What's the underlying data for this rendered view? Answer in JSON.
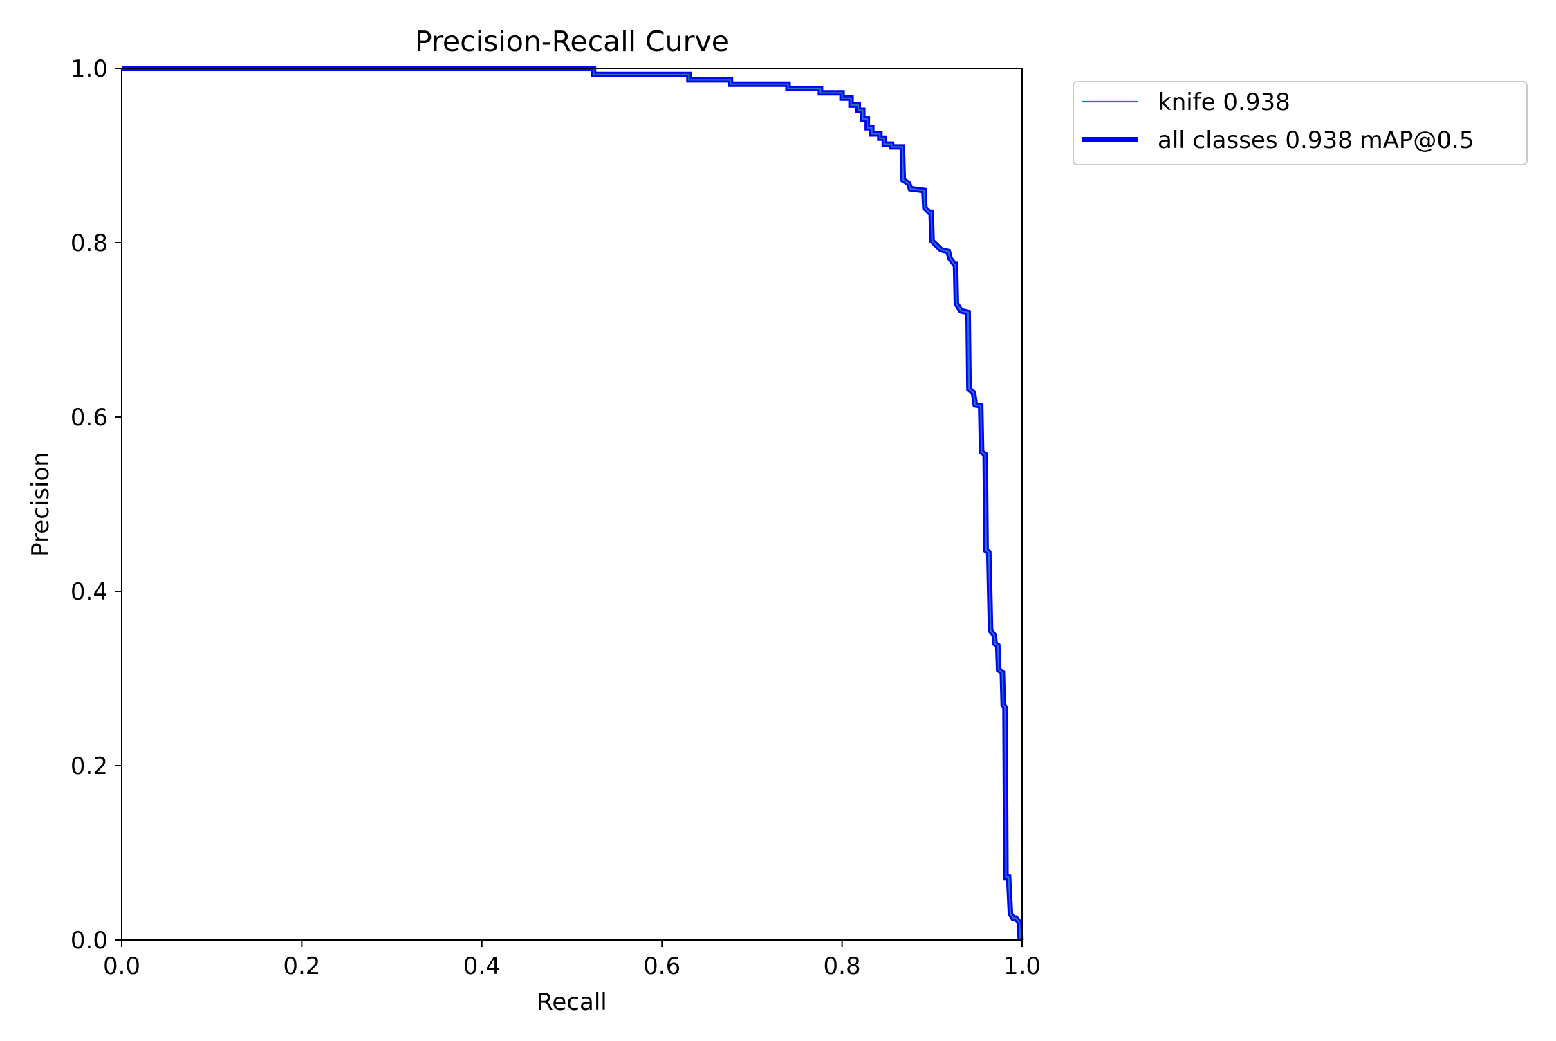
{
  "chart_data": {
    "type": "line",
    "title": "Precision-Recall Curve",
    "xlabel": "Recall",
    "ylabel": "Precision",
    "xlim": [
      0.0,
      1.0
    ],
    "ylim": [
      0.0,
      1.0
    ],
    "xticks": [
      "0.0",
      "0.2",
      "0.4",
      "0.6",
      "0.8",
      "1.0"
    ],
    "yticks": [
      "0.0",
      "0.2",
      "0.4",
      "0.6",
      "0.8",
      "1.0"
    ],
    "grid": false,
    "legend_position": "outside-top-right",
    "series": [
      {
        "name": "knife 0.938",
        "color": "#1f77b4",
        "style": "thin",
        "points": [
          [
            0.0,
            1.0
          ],
          [
            0.524,
            1.0
          ],
          [
            0.524,
            0.993
          ],
          [
            0.63,
            0.993
          ],
          [
            0.63,
            0.987
          ],
          [
            0.676,
            0.987
          ],
          [
            0.676,
            0.982
          ],
          [
            0.74,
            0.982
          ],
          [
            0.74,
            0.977
          ],
          [
            0.776,
            0.977
          ],
          [
            0.776,
            0.972
          ],
          [
            0.8,
            0.972
          ],
          [
            0.8,
            0.966
          ],
          [
            0.81,
            0.966
          ],
          [
            0.81,
            0.958
          ],
          [
            0.818,
            0.958
          ],
          [
            0.818,
            0.952
          ],
          [
            0.823,
            0.952
          ],
          [
            0.823,
            0.942
          ],
          [
            0.828,
            0.942
          ],
          [
            0.828,
            0.932
          ],
          [
            0.833,
            0.932
          ],
          [
            0.833,
            0.925
          ],
          [
            0.842,
            0.925
          ],
          [
            0.842,
            0.92
          ],
          [
            0.847,
            0.92
          ],
          [
            0.847,
            0.913
          ],
          [
            0.855,
            0.913
          ],
          [
            0.855,
            0.91
          ],
          [
            0.867,
            0.91
          ],
          [
            0.868,
            0.872
          ],
          [
            0.874,
            0.868
          ],
          [
            0.876,
            0.862
          ],
          [
            0.891,
            0.86
          ],
          [
            0.892,
            0.84
          ],
          [
            0.897,
            0.835
          ],
          [
            0.899,
            0.835
          ],
          [
            0.9,
            0.802
          ],
          [
            0.905,
            0.797
          ],
          [
            0.91,
            0.792
          ],
          [
            0.918,
            0.79
          ],
          [
            0.92,
            0.782
          ],
          [
            0.925,
            0.775
          ],
          [
            0.926,
            0.775
          ],
          [
            0.927,
            0.73
          ],
          [
            0.932,
            0.722
          ],
          [
            0.94,
            0.72
          ],
          [
            0.941,
            0.632
          ],
          [
            0.946,
            0.628
          ],
          [
            0.948,
            0.614
          ],
          [
            0.954,
            0.613
          ],
          [
            0.955,
            0.56
          ],
          [
            0.959,
            0.557
          ],
          [
            0.96,
            0.447
          ],
          [
            0.963,
            0.445
          ],
          [
            0.965,
            0.355
          ],
          [
            0.969,
            0.35
          ],
          [
            0.97,
            0.34
          ],
          [
            0.973,
            0.338
          ],
          [
            0.974,
            0.31
          ],
          [
            0.978,
            0.307
          ],
          [
            0.979,
            0.27
          ],
          [
            0.981,
            0.267
          ],
          [
            0.982,
            0.072
          ],
          [
            0.985,
            0.072
          ],
          [
            0.987,
            0.03
          ],
          [
            0.99,
            0.025
          ],
          [
            0.993,
            0.025
          ],
          [
            0.997,
            0.02
          ],
          [
            0.998,
            0.0
          ]
        ]
      },
      {
        "name": "all classes 0.938 mAP@0.5",
        "color": "#0000ff",
        "style": "thick",
        "points": [
          [
            0.0,
            1.0
          ],
          [
            0.524,
            1.0
          ],
          [
            0.524,
            0.993
          ],
          [
            0.63,
            0.993
          ],
          [
            0.63,
            0.987
          ],
          [
            0.676,
            0.987
          ],
          [
            0.676,
            0.982
          ],
          [
            0.74,
            0.982
          ],
          [
            0.74,
            0.977
          ],
          [
            0.776,
            0.977
          ],
          [
            0.776,
            0.972
          ],
          [
            0.8,
            0.972
          ],
          [
            0.8,
            0.966
          ],
          [
            0.81,
            0.966
          ],
          [
            0.81,
            0.958
          ],
          [
            0.818,
            0.958
          ],
          [
            0.818,
            0.952
          ],
          [
            0.823,
            0.952
          ],
          [
            0.823,
            0.942
          ],
          [
            0.828,
            0.942
          ],
          [
            0.828,
            0.932
          ],
          [
            0.833,
            0.932
          ],
          [
            0.833,
            0.925
          ],
          [
            0.842,
            0.925
          ],
          [
            0.842,
            0.92
          ],
          [
            0.847,
            0.92
          ],
          [
            0.847,
            0.913
          ],
          [
            0.855,
            0.913
          ],
          [
            0.855,
            0.91
          ],
          [
            0.867,
            0.91
          ],
          [
            0.868,
            0.872
          ],
          [
            0.874,
            0.868
          ],
          [
            0.876,
            0.862
          ],
          [
            0.891,
            0.86
          ],
          [
            0.892,
            0.84
          ],
          [
            0.897,
            0.835
          ],
          [
            0.899,
            0.835
          ],
          [
            0.9,
            0.802
          ],
          [
            0.905,
            0.797
          ],
          [
            0.91,
            0.792
          ],
          [
            0.918,
            0.79
          ],
          [
            0.92,
            0.782
          ],
          [
            0.925,
            0.775
          ],
          [
            0.926,
            0.775
          ],
          [
            0.927,
            0.73
          ],
          [
            0.932,
            0.722
          ],
          [
            0.94,
            0.72
          ],
          [
            0.941,
            0.632
          ],
          [
            0.946,
            0.628
          ],
          [
            0.948,
            0.614
          ],
          [
            0.954,
            0.613
          ],
          [
            0.955,
            0.56
          ],
          [
            0.959,
            0.557
          ],
          [
            0.96,
            0.447
          ],
          [
            0.963,
            0.445
          ],
          [
            0.965,
            0.355
          ],
          [
            0.969,
            0.35
          ],
          [
            0.97,
            0.34
          ],
          [
            0.973,
            0.338
          ],
          [
            0.974,
            0.31
          ],
          [
            0.978,
            0.307
          ],
          [
            0.979,
            0.27
          ],
          [
            0.981,
            0.267
          ],
          [
            0.982,
            0.072
          ],
          [
            0.985,
            0.072
          ],
          [
            0.987,
            0.03
          ],
          [
            0.99,
            0.025
          ],
          [
            0.993,
            0.025
          ],
          [
            0.997,
            0.02
          ],
          [
            0.998,
            0.0
          ]
        ]
      }
    ]
  }
}
